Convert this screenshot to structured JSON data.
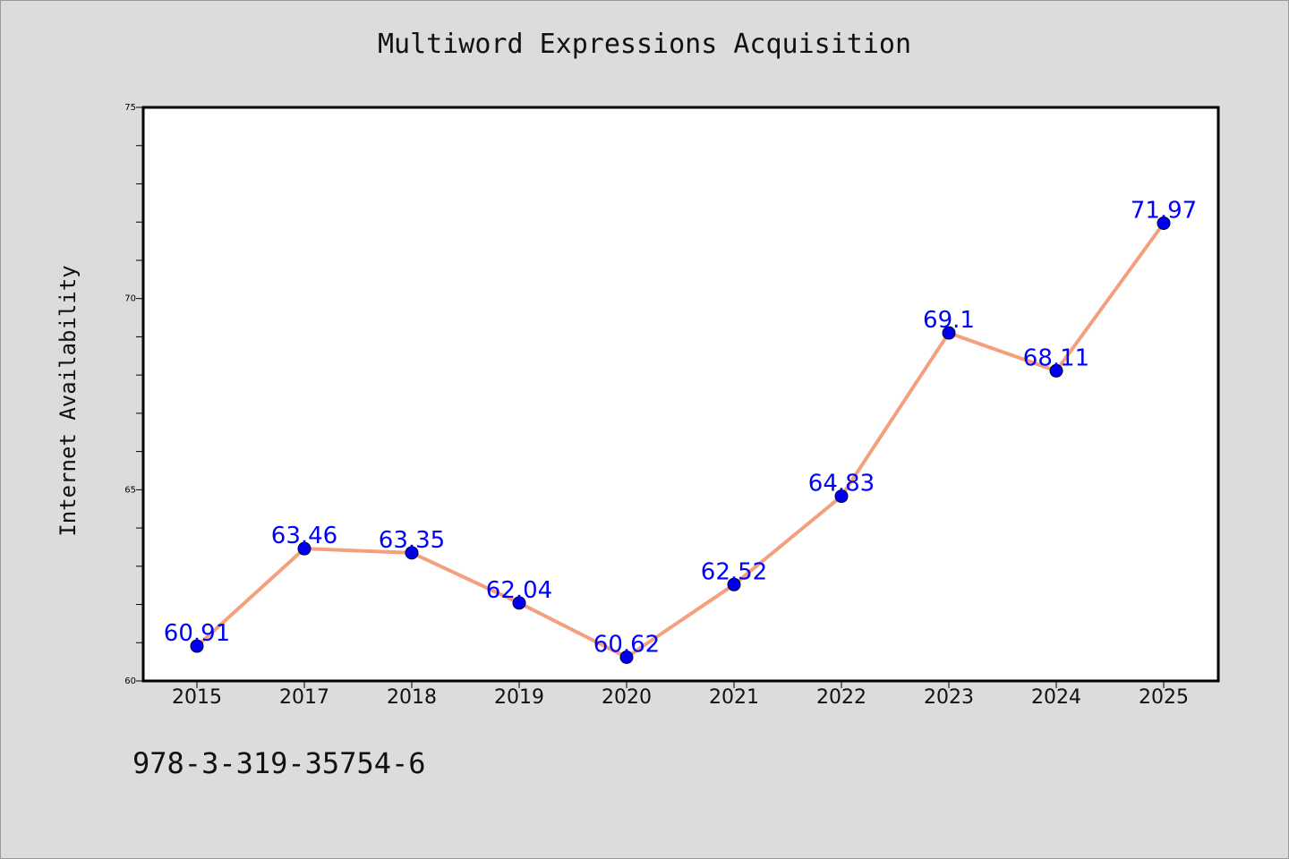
{
  "chart_data": {
    "type": "line",
    "title": "Multiword Expressions Acquisition",
    "xlabel": "",
    "ylabel": "Internet Availability",
    "categories": [
      "2015",
      "2017",
      "2018",
      "2019",
      "2020",
      "2021",
      "2022",
      "2023",
      "2024",
      "2025"
    ],
    "series": [
      {
        "values": [
          60.91,
          63.46,
          63.35,
          62.04,
          60.62,
          62.52,
          64.83,
          69.1,
          68.11,
          71.97
        ]
      }
    ],
    "value_labels": [
      "60.91",
      "63.46",
      "63.35",
      "62.04",
      "60.62",
      "62.52",
      "64.83",
      "69.1",
      "68.11",
      "71.97"
    ],
    "ylim": [
      60,
      75
    ],
    "yticks": [
      "60",
      "65",
      "70",
      "75"
    ],
    "grid": false,
    "colors": {
      "line": "#f4a07e",
      "marker": "#0000ee",
      "value_label": "#0000ff",
      "plot_background": "#ffffff",
      "page_background": "#dcdcdc"
    }
  },
  "footer": {
    "text": "978-3-319-35754-6"
  }
}
